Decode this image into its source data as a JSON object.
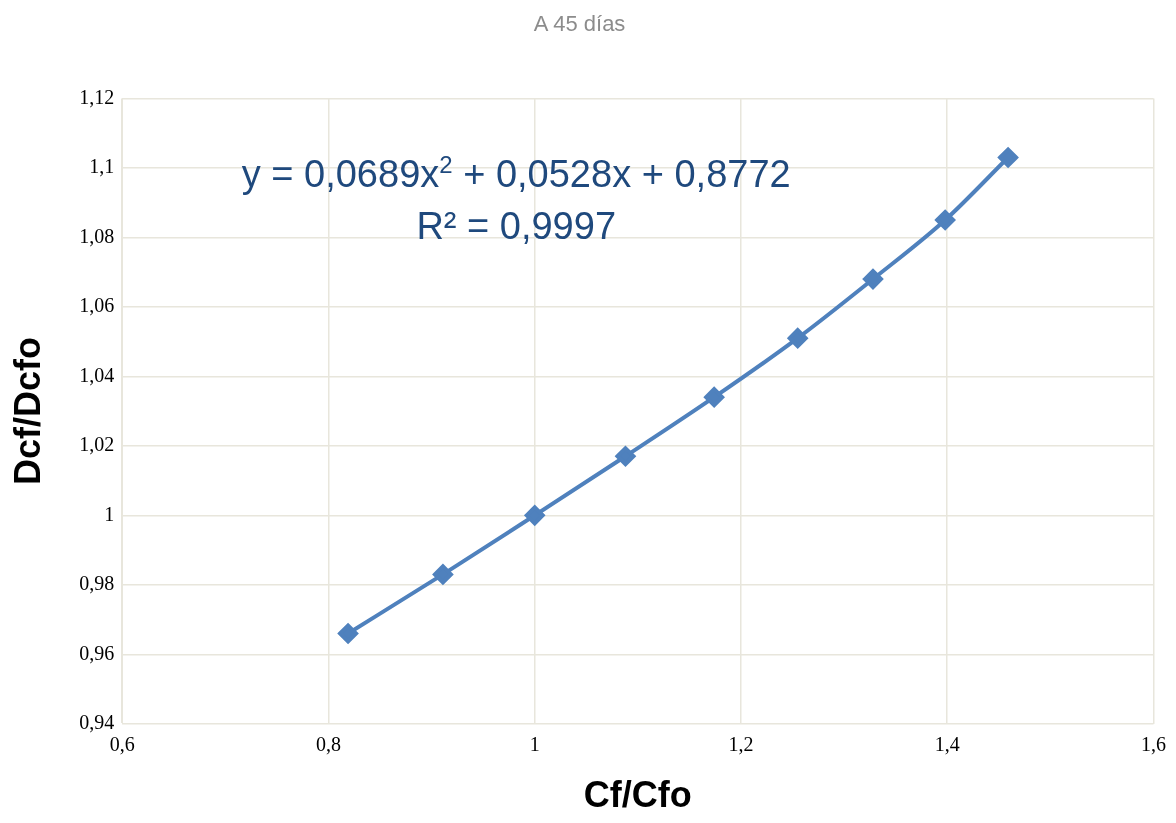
{
  "chart_data": {
    "type": "line",
    "title": "A 45 días",
    "xlabel": "Cf/Cfo",
    "ylabel": "Dcf/Dcfo",
    "annotations": [
      "y = 0,0689x$^{2}$ + 0,0528x + 0,8772",
      "R² = 0,9997"
    ],
    "series": [
      {
        "color": "#4f81bd",
        "x": [
          0.819,
          0.911,
          1.0,
          1.088,
          1.174,
          1.255,
          1.328,
          1.398,
          1.459
        ],
        "values": [
          0.966,
          0.983,
          1.0,
          1.017,
          1.034,
          1.051,
          1.068,
          1.085,
          1.103
        ]
      }
    ],
    "xlim": [
      0.6,
      1.6
    ],
    "xticks": [
      {
        "value": 0.6,
        "label": "0,6"
      },
      {
        "value": 0.8,
        "label": "0,8"
      },
      1,
      {
        "value": 1.2,
        "label": "1,2"
      },
      {
        "value": 1.4,
        "label": "1,4"
      },
      {
        "value": 1.6,
        "label": "1,6"
      }
    ],
    "ylim": [
      0.94,
      1.12
    ],
    "yticks": [
      {
        "value": 0.94,
        "label": "0,94"
      },
      {
        "value": 0.96,
        "label": "0,96"
      },
      {
        "value": 0.98,
        "label": "0,98"
      },
      1,
      {
        "value": 1.02,
        "label": "1,02"
      },
      {
        "value": 1.04,
        "label": "1,04"
      },
      {
        "value": 1.06,
        "label": "1,06"
      },
      {
        "value": 1.08,
        "label": "1,08"
      },
      {
        "value": 1.1,
        "label": "1,1"
      },
      {
        "value": 1.12,
        "label": "1,12"
      }
    ],
    "grid": true,
    "legend": false,
    "marker": "diamond",
    "line_style": "solid"
  }
}
